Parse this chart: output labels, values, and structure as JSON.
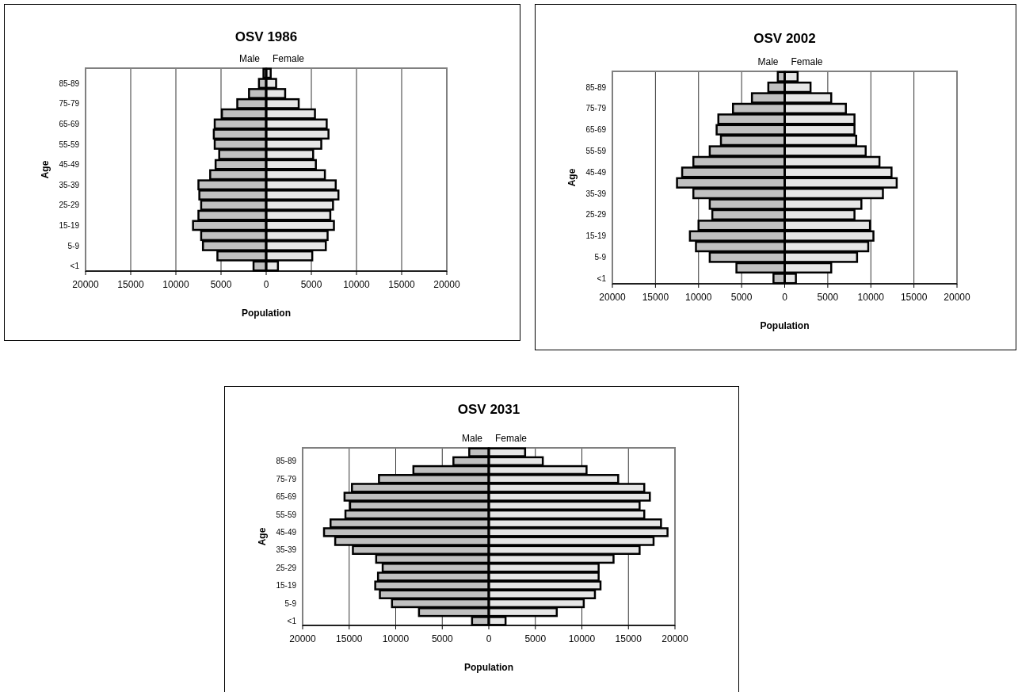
{
  "chart_data": [
    {
      "type": "bar",
      "orientation": "horizontal",
      "stacked": true,
      "title": "OSV 1986",
      "xlabel": "Population",
      "ylabel": "Age",
      "grid": "x",
      "categories": [
        null,
        "85-89",
        null,
        "75-79",
        null,
        "65-69",
        null,
        "55-59",
        null,
        "45-49",
        null,
        "35-39",
        null,
        "25-29",
        null,
        "15-19",
        null,
        "5-9",
        null,
        "<1"
      ],
      "xlim": [
        -20000,
        20000
      ],
      "xticks": [
        {
          "value": -20000,
          "label": "20000"
        },
        {
          "value": -15000,
          "label": "15000"
        },
        {
          "value": -10000,
          "label": "10000"
        },
        {
          "value": -5000,
          "label": "5000"
        },
        0,
        5000,
        10000,
        15000,
        20000
      ],
      "series": [
        {
          "name": "Male",
          "color": "#c0c0c0",
          "values": [
            -300,
            -800,
            -1900,
            -3200,
            -4900,
            -5700,
            -5800,
            -5700,
            -5200,
            -5600,
            -6200,
            -7500,
            -7400,
            -7200,
            -7500,
            -8100,
            -7200,
            -7000,
            -5400,
            -1400
          ]
        },
        {
          "name": "Female",
          "color": "#e6e6e6",
          "values": [
            500,
            1100,
            2100,
            3600,
            5400,
            6700,
            6900,
            6100,
            5200,
            5500,
            6500,
            7700,
            8000,
            7400,
            7100,
            7500,
            6800,
            6600,
            5100,
            1300
          ]
        }
      ]
    },
    {
      "type": "bar",
      "orientation": "horizontal",
      "stacked": true,
      "title": "OSV 2002",
      "xlabel": "Population",
      "ylabel": "Age",
      "grid": "x",
      "categories": [
        null,
        "85-89",
        null,
        "75-79",
        null,
        "65-69",
        null,
        "55-59",
        null,
        "45-49",
        null,
        "35-39",
        null,
        "25-29",
        null,
        "15-19",
        null,
        "5-9",
        null,
        "<1"
      ],
      "xlim": [
        -20000,
        20000
      ],
      "xticks": [
        {
          "value": -20000,
          "label": "20000"
        },
        {
          "value": -15000,
          "label": "15000"
        },
        {
          "value": -10000,
          "label": "10000"
        },
        {
          "value": -5000,
          "label": "5000"
        },
        0,
        5000,
        10000,
        15000,
        20000
      ],
      "series": [
        {
          "name": "Male",
          "color": "#c0c0c0",
          "values": [
            -800,
            -1900,
            -3800,
            -6000,
            -7700,
            -7900,
            -7400,
            -8700,
            -10600,
            -11900,
            -12500,
            -10600,
            -8700,
            -8400,
            -10000,
            -11000,
            -10300,
            -8700,
            -5600,
            -1300
          ]
        },
        {
          "name": "Female",
          "color": "#e6e6e6",
          "values": [
            1500,
            3000,
            5400,
            7100,
            8100,
            8100,
            8300,
            9400,
            11000,
            12400,
            13000,
            11400,
            8900,
            8100,
            9900,
            10300,
            9700,
            8400,
            5400,
            1300
          ]
        }
      ]
    },
    {
      "type": "bar",
      "orientation": "horizontal",
      "stacked": true,
      "title": "OSV 2031",
      "xlabel": "Population",
      "ylabel": "Age",
      "grid": "x",
      "categories": [
        null,
        "85-89",
        null,
        "75-79",
        null,
        "65-69",
        null,
        "55-59",
        null,
        "45-49",
        null,
        "35-39",
        null,
        "25-29",
        null,
        "15-19",
        null,
        "5-9",
        null,
        "<1"
      ],
      "xlim": [
        -20000,
        20000
      ],
      "xticks": [
        {
          "value": -20000,
          "label": "20000"
        },
        {
          "value": -15000,
          "label": "15000"
        },
        {
          "value": -10000,
          "label": "10000"
        },
        {
          "value": -5000,
          "label": "5000"
        },
        0,
        5000,
        10000,
        15000,
        20000
      ],
      "series": [
        {
          "name": "Male",
          "color": "#c0c0c0",
          "values": [
            -2100,
            -3800,
            -8100,
            -11800,
            -14700,
            -15500,
            -14900,
            -15400,
            -17000,
            -17700,
            -16500,
            -14600,
            -12100,
            -11400,
            -11900,
            -12200,
            -11700,
            -10400,
            -7500,
            -1800
          ]
        },
        {
          "name": "Female",
          "color": "#e6e6e6",
          "values": [
            3900,
            5800,
            10500,
            13900,
            16700,
            17300,
            16200,
            16700,
            18500,
            19200,
            17700,
            16200,
            13400,
            11800,
            11800,
            12000,
            11400,
            10200,
            7300,
            1800
          ]
        }
      ]
    }
  ]
}
